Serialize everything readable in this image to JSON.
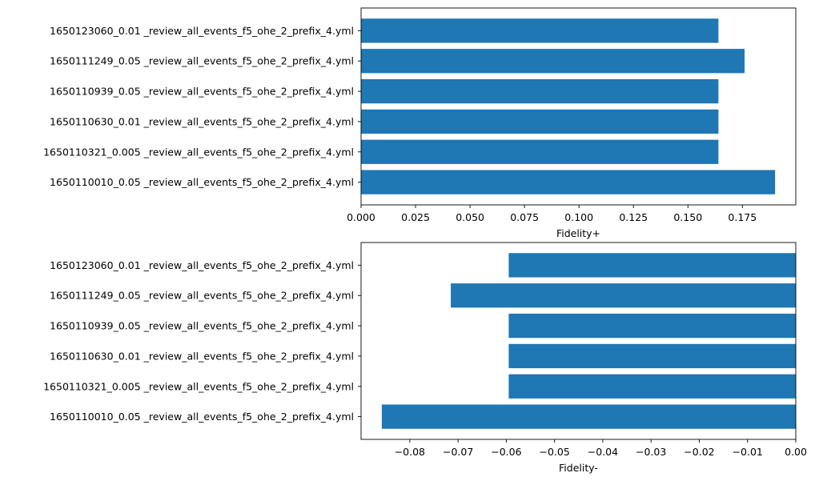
{
  "chart_data": [
    {
      "type": "bar",
      "orientation": "horizontal",
      "categories": [
        "1650110010_0.05 _review_all_events_f5_ohe_2_prefix_4.yml",
        "1650110321_0.005 _review_all_events_f5_ohe_2_prefix_4.yml",
        "1650110630_0.01 _review_all_events_f5_ohe_2_prefix_4.yml",
        "1650110939_0.05 _review_all_events_f5_ohe_2_prefix_4.yml",
        "1650111249_0.05 _review_all_events_f5_ohe_2_prefix_4.yml",
        "1650123060_0.01 _review_all_events_f5_ohe_2_prefix_4.yml"
      ],
      "values": [
        0.19,
        0.164,
        0.164,
        0.164,
        0.176,
        0.164
      ],
      "xlabel": "Fidelity+",
      "ylabel": "",
      "title": "",
      "xlim": [
        0.0,
        0.1995
      ],
      "xticks": [
        0.0,
        0.025,
        0.05,
        0.075,
        0.1,
        0.125,
        0.15,
        0.175
      ],
      "xtick_labels": [
        "0.000",
        "0.025",
        "0.050",
        "0.075",
        "0.100",
        "0.125",
        "0.150",
        "0.175"
      ],
      "bar_color": "#1f77b4",
      "grid": false
    },
    {
      "type": "bar",
      "orientation": "horizontal",
      "categories": [
        "1650110010_0.05 _review_all_events_f5_ohe_2_prefix_4.yml",
        "1650110321_0.005 _review_all_events_f5_ohe_2_prefix_4.yml",
        "1650110630_0.01 _review_all_events_f5_ohe_2_prefix_4.yml",
        "1650110939_0.05 _review_all_events_f5_ohe_2_prefix_4.yml",
        "1650111249_0.05 _review_all_events_f5_ohe_2_prefix_4.yml",
        "1650123060_0.01 _review_all_events_f5_ohe_2_prefix_4.yml"
      ],
      "values": [
        -0.0858,
        -0.0595,
        -0.0595,
        -0.0595,
        -0.0715,
        -0.0595
      ],
      "xlabel": "Fidelity-",
      "ylabel": "",
      "title": "",
      "xlim": [
        -0.0901,
        0.0
      ],
      "xticks": [
        -0.08,
        -0.07,
        -0.06,
        -0.05,
        -0.04,
        -0.03,
        -0.02,
        -0.01,
        0.0
      ],
      "xtick_labels": [
        "−0.08",
        "−0.07",
        "−0.06",
        "−0.05",
        "−0.04",
        "−0.03",
        "−0.02",
        "−0.01",
        "0.00"
      ],
      "bar_color": "#1f77b4",
      "grid": false
    }
  ]
}
